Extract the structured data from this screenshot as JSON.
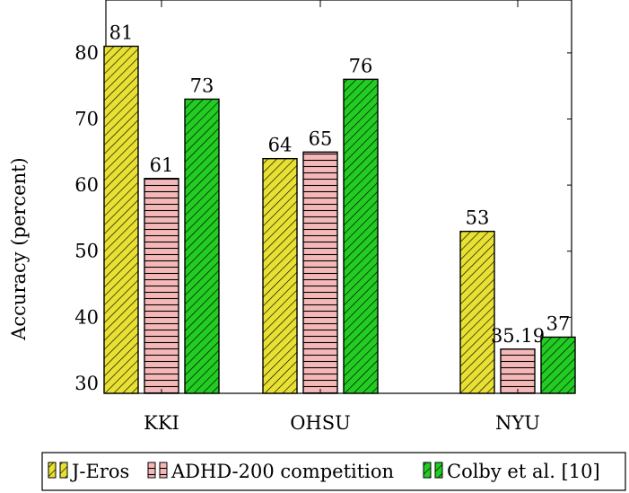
{
  "chart_data": {
    "type": "bar",
    "categories": [
      "KKI",
      "OHSU",
      "NYU"
    ],
    "series": [
      {
        "name": "J-Eros",
        "values": [
          81,
          64,
          53
        ],
        "value_labels": [
          "81",
          "64",
          "53"
        ],
        "color": "#e8e033",
        "pattern": "diagonal-hatch"
      },
      {
        "name": "ADHD-200 competition",
        "values": [
          61,
          65,
          35.19
        ],
        "value_labels": [
          "61",
          "65",
          "35.19"
        ],
        "color": "#f5b8b8",
        "pattern": "horizontal-lines"
      },
      {
        "name": "Colby et al. [10]",
        "values": [
          73,
          76,
          37
        ],
        "value_labels": [
          "73",
          "76",
          "37"
        ],
        "color": "#22cc22",
        "pattern": "diagonal-hatch"
      }
    ],
    "title": "",
    "xlabel": "",
    "ylabel": "Accuracy (percent)",
    "ylim": [
      28.5,
      88
    ],
    "yticks": [
      30,
      40,
      50,
      60,
      70,
      80
    ],
    "grid": false,
    "legend_position": "bottom"
  }
}
